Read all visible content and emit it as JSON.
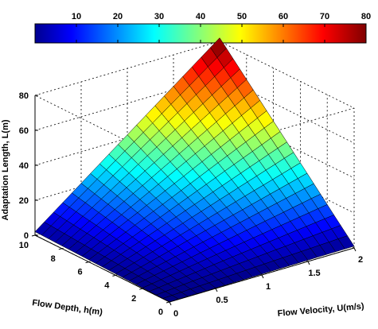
{
  "chart_data": {
    "type": "surface",
    "title": "",
    "xlabel": "Flow Velocity, U(m/s)",
    "ylabel": "Flow Depth, h(m)",
    "zlabel": "Adaptation Length, L(m)",
    "xlim": [
      0,
      2
    ],
    "ylim": [
      0,
      10
    ],
    "zlim": [
      0,
      80
    ],
    "x_ticks": [
      "0",
      "0.5",
      "1",
      "1.5",
      "2"
    ],
    "y_ticks": [
      "0",
      "2",
      "4",
      "6",
      "8",
      "10"
    ],
    "z_ticks": [
      "0",
      "20",
      "40",
      "60",
      "80"
    ],
    "colorbar": {
      "range": [
        0,
        80
      ],
      "ticks": [
        "10",
        "20",
        "30",
        "40",
        "50",
        "60",
        "70",
        "80"
      ],
      "colormap": "jet"
    },
    "grid": true,
    "surface": {
      "x_range": [
        0,
        2
      ],
      "y_range": [
        0,
        10
      ],
      "grid_size": 21,
      "corner_values": {
        "U0_h0": 0,
        "U2_h0": 1,
        "U0_h10": 2,
        "U2_h10": 82
      }
    }
  }
}
